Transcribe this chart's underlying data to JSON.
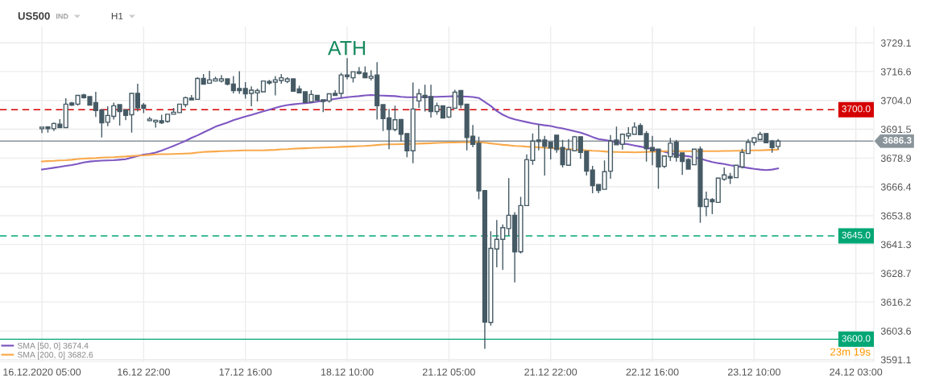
{
  "chart_data": {
    "type": "candlestick",
    "title": "US500",
    "categories": [
      "16.12.2020 05:00",
      null,
      null,
      null,
      null,
      null,
      null,
      null,
      null,
      null,
      null,
      null,
      null,
      null,
      null,
      null,
      null,
      "16.12 22:00",
      null,
      null,
      null,
      null,
      null,
      null,
      null,
      null,
      null,
      null,
      null,
      null,
      null,
      null,
      null,
      null,
      "17.12 16:00",
      null,
      null,
      null,
      null,
      null,
      null,
      null,
      null,
      null,
      null,
      null,
      null,
      null,
      null,
      null,
      null,
      "18.12 10:00",
      null,
      null,
      null,
      null,
      null,
      null,
      null,
      null,
      null,
      null,
      null,
      null,
      null,
      null,
      null,
      null,
      "21.12 05:00",
      null,
      null,
      null,
      null,
      null,
      null,
      null,
      null,
      null,
      null,
      null,
      null,
      null,
      null,
      null,
      null,
      "21.12 22:00",
      null,
      null,
      null,
      null,
      null,
      null,
      null,
      null,
      null,
      null,
      null,
      null,
      null,
      null,
      null,
      null,
      "22.12 16:00",
      null,
      null,
      null,
      null,
      null,
      null,
      null,
      null,
      null,
      null,
      null,
      null,
      null,
      null,
      null,
      null,
      "23.12 10:00",
      null,
      null,
      null,
      null,
      null,
      null,
      null,
      null,
      null,
      null,
      null,
      null,
      null,
      null,
      null,
      null,
      "24.12 03:00"
    ],
    "color": "#455a64",
    "ohlc": [
      [
        3691.7,
        3692.4,
        3689.8,
        3692.4
      ],
      [
        3692.5,
        3692.8,
        3690.0,
        3691.7
      ],
      [
        3691.7,
        3694.4,
        3690.7,
        3694.0
      ],
      [
        3693.7,
        3695.9,
        3692.2,
        3692.2
      ],
      [
        3692.2,
        3705.0,
        3692.2,
        3702.4
      ],
      [
        3702.9,
        3703.4,
        3701.6,
        3702.0
      ],
      [
        3702.4,
        3706.4,
        3701.7,
        3706.2
      ],
      [
        3706.4,
        3706.9,
        3704.8,
        3705.2
      ],
      [
        3705.7,
        3705.7,
        3702.0,
        3702.0
      ],
      [
        3703.1,
        3707.8,
        3696.8,
        3699.6
      ],
      [
        3699.9,
        3699.9,
        3687.9,
        3694.3
      ],
      [
        3694.5,
        3701.5,
        3692.8,
        3697.5
      ],
      [
        3697.1,
        3703.1,
        3695.7,
        3701.7
      ],
      [
        3702.2,
        3702.2,
        3693.1,
        3699.2
      ],
      [
        3699.9,
        3699.9,
        3695.4,
        3697.5
      ],
      [
        3697.8,
        3707.3,
        3690.0,
        3707.1
      ],
      [
        3707.1,
        3711.3,
        3699.2,
        3700.8
      ],
      [
        3702.0,
        3702.9,
        3698.5,
        3700.6
      ],
      [
        3695.2,
        3696.8,
        3694.9,
        3695.9
      ],
      [
        3694.7,
        3695.7,
        3692.2,
        3695.4
      ],
      [
        3695.2,
        3697.8,
        3693.8,
        3694.3
      ],
      [
        3694.9,
        3698.2,
        3694.3,
        3698.0
      ],
      [
        3698.0,
        3700.8,
        3697.8,
        3698.9
      ],
      [
        3698.7,
        3702.4,
        3698.7,
        3702.4
      ],
      [
        3702.2,
        3705.7,
        3701.0,
        3705.2
      ],
      [
        3705.0,
        3706.4,
        3704.1,
        3704.3
      ],
      [
        3704.5,
        3714.1,
        3704.5,
        3713.6
      ],
      [
        3713.6,
        3715.5,
        3711.1,
        3711.1
      ],
      [
        3711.5,
        3716.9,
        3711.3,
        3713.0
      ],
      [
        3712.5,
        3714.4,
        3712.3,
        3713.4
      ],
      [
        3712.5,
        3715.1,
        3711.8,
        3713.4
      ],
      [
        3713.4,
        3713.6,
        3710.6,
        3711.1
      ],
      [
        3711.1,
        3714.6,
        3707.1,
        3708.3
      ],
      [
        3709.2,
        3716.7,
        3706.9,
        3708.3
      ],
      [
        3709.2,
        3712.0,
        3704.8,
        3706.9
      ],
      [
        3707.1,
        3710.2,
        3701.5,
        3708.5
      ],
      [
        3707.3,
        3709.2,
        3703.6,
        3708.3
      ],
      [
        3707.8,
        3712.7,
        3707.8,
        3712.5
      ],
      [
        3712.3,
        3713.0,
        3710.9,
        3711.6
      ],
      [
        3712.0,
        3714.6,
        3706.2,
        3713.0
      ],
      [
        3712.7,
        3715.5,
        3711.3,
        3713.9
      ],
      [
        3712.3,
        3714.1,
        3711.6,
        3713.4
      ],
      [
        3713.4,
        3713.6,
        3707.8,
        3708.0
      ],
      [
        3709.0,
        3710.4,
        3707.1,
        3707.3
      ],
      [
        3707.8,
        3707.8,
        3703.1,
        3703.1
      ],
      [
        3703.4,
        3708.5,
        3703.1,
        3706.6
      ],
      [
        3706.2,
        3706.4,
        3703.8,
        3704.1
      ],
      [
        3704.3,
        3704.5,
        3698.9,
        3703.6
      ],
      [
        3703.8,
        3707.1,
        3703.1,
        3706.9
      ],
      [
        3707.1,
        3708.5,
        3706.0,
        3706.2
      ],
      [
        3707.1,
        3716.0,
        3705.2,
        3715.1
      ],
      [
        3715.1,
        3722.4,
        3713.2,
        3714.4
      ],
      [
        3713.9,
        3716.7,
        3711.8,
        3716.5
      ],
      [
        3716.5,
        3718.6,
        3715.3,
        3715.8
      ],
      [
        3716.0,
        3718.8,
        3713.9,
        3713.9
      ],
      [
        3713.7,
        3717.2,
        3712.7,
        3714.6
      ],
      [
        3715.1,
        3720.7,
        3695.7,
        3701.7
      ],
      [
        3702.2,
        3702.2,
        3690.7,
        3696.1
      ],
      [
        3696.4,
        3700.3,
        3682.8,
        3691.4
      ],
      [
        3691.4,
        3701.7,
        3690.5,
        3695.6
      ],
      [
        3695.7,
        3695.7,
        3686.1,
        3689.3
      ],
      [
        3689.6,
        3689.6,
        3679.3,
        3682.1
      ],
      [
        3682.1,
        3711.8,
        3676.7,
        3700.3
      ],
      [
        3703.8,
        3709.0,
        3700.8,
        3706.9
      ],
      [
        3706.2,
        3710.9,
        3699.2,
        3705.2
      ],
      [
        3705.7,
        3710.9,
        3696.6,
        3699.2
      ],
      [
        3699.2,
        3703.1,
        3697.8,
        3701.7
      ],
      [
        3701.7,
        3701.7,
        3696.4,
        3696.4
      ],
      [
        3696.8,
        3701.3,
        3696.4,
        3701.0
      ],
      [
        3700.6,
        3708.7,
        3700.3,
        3707.6
      ],
      [
        3708.3,
        3708.3,
        3700.6,
        3702.2
      ],
      [
        3702.4,
        3702.4,
        3682.3,
        3687.9
      ],
      [
        3688.4,
        3693.3,
        3683.7,
        3684.9
      ],
      [
        3685.4,
        3688.2,
        3661.0,
        3664.6
      ],
      [
        3664.8,
        3664.8,
        3595.8,
        3607.5
      ],
      [
        3607.3,
        3647.0,
        3605.9,
        3639.6
      ],
      [
        3639.3,
        3651.9,
        3631.3,
        3643.5
      ],
      [
        3643.5,
        3650.0,
        3630.2,
        3648.6
      ],
      [
        3648.2,
        3670.2,
        3645.1,
        3654.0
      ],
      [
        3654.0,
        3655.4,
        3624.8,
        3638.1
      ],
      [
        3638.1,
        3662.0,
        3637.4,
        3658.2
      ],
      [
        3658.2,
        3680.5,
        3658.2,
        3678.2
      ],
      [
        3677.9,
        3689.6,
        3676.0,
        3686.3
      ],
      [
        3686.8,
        3693.5,
        3682.3,
        3686.1
      ],
      [
        3686.8,
        3688.6,
        3671.3,
        3684.0
      ],
      [
        3685.8,
        3685.8,
        3678.3,
        3683.3
      ],
      [
        3688.9,
        3688.9,
        3681.2,
        3682.6
      ],
      [
        3683.5,
        3686.8,
        3674.8,
        3676.0
      ],
      [
        3675.8,
        3687.2,
        3675.8,
        3682.6
      ],
      [
        3682.1,
        3688.6,
        3681.9,
        3688.2
      ],
      [
        3688.2,
        3688.2,
        3678.6,
        3681.4
      ],
      [
        3681.9,
        3681.9,
        3671.3,
        3673.2
      ],
      [
        3673.7,
        3675.5,
        3663.6,
        3666.9
      ],
      [
        3667.4,
        3667.4,
        3663.6,
        3664.8
      ],
      [
        3665.3,
        3677.9,
        3665.3,
        3673.0
      ],
      [
        3673.2,
        3688.9,
        3669.9,
        3686.3
      ],
      [
        3686.8,
        3692.6,
        3684.7,
        3684.7
      ],
      [
        3684.9,
        3689.6,
        3682.6,
        3689.3
      ],
      [
        3688.6,
        3692.4,
        3687.2,
        3689.6
      ],
      [
        3689.3,
        3694.5,
        3689.3,
        3692.4
      ],
      [
        3693.1,
        3694.0,
        3689.1,
        3689.1
      ],
      [
        3689.6,
        3690.7,
        3677.4,
        3683.0
      ],
      [
        3683.5,
        3688.6,
        3675.8,
        3682.1
      ],
      [
        3682.8,
        3682.8,
        3665.5,
        3675.1
      ],
      [
        3675.3,
        3680.0,
        3674.6,
        3679.8
      ],
      [
        3679.5,
        3687.7,
        3677.6,
        3685.4
      ],
      [
        3685.8,
        3686.8,
        3677.4,
        3679.3
      ],
      [
        3681.2,
        3681.2,
        3671.6,
        3677.4
      ],
      [
        3678.3,
        3678.8,
        3673.9,
        3674.1
      ],
      [
        3676.0,
        3683.0,
        3676.0,
        3682.8
      ],
      [
        3682.8,
        3684.0,
        3650.7,
        3657.8
      ],
      [
        3657.8,
        3664.3,
        3653.6,
        3661.0
      ],
      [
        3660.8,
        3661.5,
        3654.5,
        3659.9
      ],
      [
        3659.6,
        3670.4,
        3659.4,
        3670.2
      ],
      [
        3669.7,
        3674.8,
        3669.0,
        3671.6
      ],
      [
        3670.9,
        3672.5,
        3667.6,
        3670.2
      ],
      [
        3670.4,
        3676.0,
        3670.4,
        3675.8
      ],
      [
        3675.1,
        3683.0,
        3674.4,
        3681.4
      ],
      [
        3680.9,
        3687.2,
        3680.7,
        3685.8
      ],
      [
        3685.8,
        3687.9,
        3684.4,
        3687.7
      ],
      [
        3687.0,
        3690.3,
        3686.8,
        3689.3
      ],
      [
        3689.6,
        3689.8,
        3685.4,
        3685.6
      ],
      [
        3686.3,
        3686.8,
        3681.2,
        3683.5
      ],
      [
        3684.0,
        3687.2,
        3682.6,
        3686.3
      ],
      null,
      null,
      null,
      null,
      null,
      null,
      null,
      null,
      null,
      null,
      null,
      null,
      null
    ],
    "series": [
      {
        "type": "line",
        "name": "SMA [50, 0] 3674.4",
        "color": "#7e57c2",
        "values": [
          3673.9,
          3674.3,
          3674.7,
          3675.1,
          3675.5,
          3675.9,
          3676.4,
          3677.0,
          3677.4,
          3677.6,
          3677.8,
          3677.9,
          3678.0,
          3678.2,
          3678.4,
          3679.1,
          3679.8,
          3680.4,
          3680.8,
          3681.3,
          3682.2,
          3683.2,
          3684.2,
          3685.3,
          3686.4,
          3687.7,
          3688.8,
          3690.1,
          3691.3,
          3692.6,
          3693.5,
          3694.4,
          3695.4,
          3696.2,
          3697.0,
          3697.7,
          3698.5,
          3699.3,
          3700.0,
          3700.8,
          3701.5,
          3702.0,
          3702.3,
          3702.6,
          3702.8,
          3703.1,
          3703.5,
          3703.9,
          3704.3,
          3704.7,
          3705.1,
          3705.4,
          3705.7,
          3705.9,
          3706.2,
          3706.4,
          3706.2,
          3706.1,
          3706.0,
          3705.9,
          3705.6,
          3705.4,
          3705.4,
          3705.5,
          3705.5,
          3705.5,
          3705.6,
          3705.7,
          3705.8,
          3705.9,
          3705.8,
          3705.7,
          3705.5,
          3705.1,
          3703.4,
          3701.6,
          3699.4,
          3697.8,
          3696.6,
          3695.8,
          3695.2,
          3694.6,
          3694.0,
          3693.6,
          3693.2,
          3692.9,
          3692.3,
          3691.8,
          3691.2,
          3690.6,
          3690.0,
          3689.1,
          3688.1,
          3687.2,
          3686.8,
          3686.4,
          3685.8,
          3685.3,
          3684.9,
          3684.4,
          3683.9,
          3683.4,
          3682.9,
          3682.3,
          3681.7,
          3681.0,
          3680.4,
          3680.0,
          3679.7,
          3679.2,
          3678.7,
          3677.9,
          3677.2,
          3676.7,
          3676.3,
          3675.8,
          3675.4,
          3675.0,
          3674.6,
          3674.2,
          3673.9,
          3673.7,
          3673.9,
          3674.4,
          null,
          null,
          null,
          null,
          null,
          null,
          null,
          null,
          null,
          null,
          null,
          null,
          null
        ]
      },
      {
        "type": "line",
        "name": "SMA [200, 0] 3682.6",
        "color": "#f9a94b",
        "values": [
          3677.4,
          3677.6,
          3677.7,
          3677.9,
          3678.0,
          3678.2,
          3678.5,
          3678.7,
          3678.8,
          3678.9,
          3679.1,
          3679.2,
          3679.3,
          3679.5,
          3679.6,
          3679.8,
          3680.0,
          3680.1,
          3680.3,
          3680.5,
          3680.6,
          3680.6,
          3680.7,
          3680.8,
          3680.9,
          3681.0,
          3681.3,
          3681.6,
          3681.7,
          3681.8,
          3681.9,
          3682.0,
          3682.1,
          3682.2,
          3682.3,
          3682.3,
          3682.3,
          3682.3,
          3682.4,
          3682.5,
          3682.7,
          3682.8,
          3683.0,
          3683.1,
          3683.2,
          3683.3,
          3683.4,
          3683.5,
          3683.6,
          3683.7,
          3683.8,
          3683.9,
          3684.0,
          3684.1,
          3684.2,
          3684.4,
          3684.6,
          3684.8,
          3684.9,
          3684.9,
          3685.0,
          3685.0,
          3685.1,
          3685.2,
          3685.3,
          3685.4,
          3685.5,
          3685.6,
          3685.7,
          3685.7,
          3685.8,
          3685.8,
          3685.8,
          3685.8,
          3685.6,
          3685.3,
          3685.0,
          3684.7,
          3684.5,
          3684.2,
          3684.1,
          3683.9,
          3683.8,
          3683.6,
          3683.4,
          3683.3,
          3683.1,
          3683.0,
          3682.8,
          3682.6,
          3682.5,
          3682.3,
          3682.1,
          3682.0,
          3681.8,
          3681.6,
          3681.6,
          3681.5,
          3681.5,
          3681.4,
          3681.5,
          3681.6,
          3681.7,
          3681.8,
          3681.9,
          3681.9,
          3681.9,
          3681.9,
          3681.9,
          3681.9,
          3681.9,
          3681.9,
          3681.9,
          3681.9,
          3682.0,
          3682.0,
          3682.1,
          3682.1,
          3682.2,
          3682.3,
          3682.3,
          3682.4,
          3682.5,
          3682.6,
          null,
          null,
          null,
          null,
          null,
          null,
          null,
          null,
          null,
          null,
          null,
          null,
          null
        ]
      }
    ],
    "ylim": [
      3590.3,
      3736.2
    ],
    "yticks": [
      3591.1,
      3603.6,
      3616.2,
      3628.7,
      3641.3,
      3653.8,
      3666.4,
      3678.9,
      3691.5,
      {
        "value": 3704,
        "label": "3704.0"
      },
      3716.6,
      3729.1
    ],
    "grid": true,
    "legend": "bottom left",
    "ref_lines": [
      {
        "axis": "y",
        "value": 3700,
        "label": "3700.0",
        "color": "#d50000",
        "line_style": "dashed"
      },
      {
        "axis": "y",
        "value": 3686.3,
        "label": "3686.3",
        "color": "#89949a",
        "line_style": "solid"
      },
      {
        "axis": "y",
        "value": 3645,
        "label": "3645.0",
        "color": "#00a674",
        "line_style": "dashed"
      },
      {
        "axis": "y",
        "value": 3600,
        "label": "3600.0",
        "color": "#00a674",
        "line_style": "solid"
      }
    ],
    "annotations": [
      "IND",
      "H1",
      {
        "text": "ATH",
        "x": "18.12 10:00",
        "y": 3722.4
      },
      "23m 19s"
    ]
  }
}
